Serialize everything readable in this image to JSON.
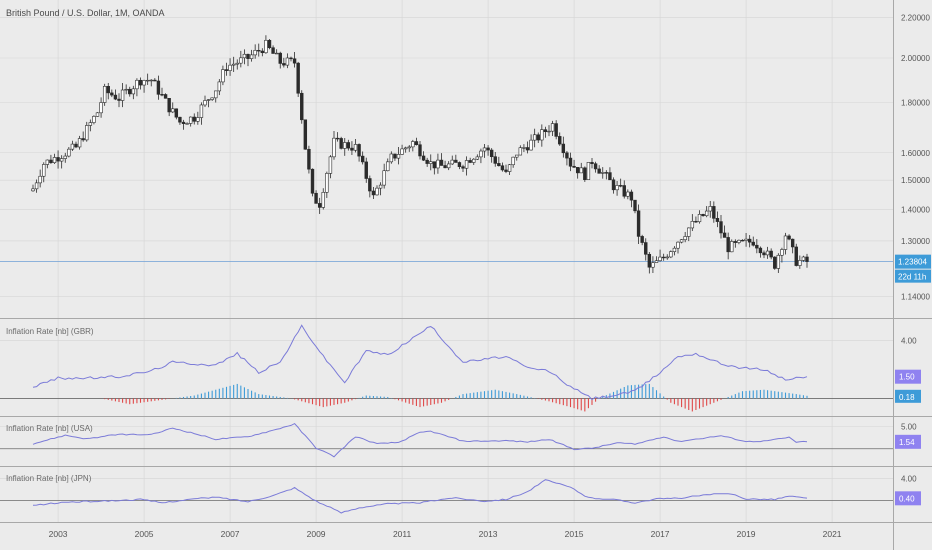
{
  "symbol_title": "British Pound / U.S. Dollar, 1M, OANDA",
  "price_badge": "1.23804",
  "countdown_badge": "22d 11h",
  "colors": {
    "background": "#ebebeb",
    "grid": "#d5d5d5",
    "candle": "#2b2b2b",
    "price_line": "#6e9fd6",
    "indicator_line": "#7b7bd8",
    "hist_positive": "#3d9bd8",
    "hist_negative": "#e04848",
    "badge_blue": "#3d9bd8",
    "badge_purple": "#8f82f0"
  },
  "chart_data": [
    {
      "type": "candlestick",
      "title": "British Pound / U.S. Dollar, 1M, OANDA",
      "y_scale": "log",
      "ylim": [
        1.11,
        2.25
      ],
      "y_ticks": [
        {
          "value": 2.2,
          "label": "2.20000"
        },
        {
          "value": 2.0,
          "label": "2.00000"
        },
        {
          "value": 1.8,
          "label": "1.80000"
        },
        {
          "value": 1.6,
          "label": "1.60000"
        },
        {
          "value": 1.5,
          "label": "1.50000"
        },
        {
          "value": 1.4,
          "label": "1.40000"
        },
        {
          "value": 1.3,
          "label": "1.30000"
        },
        {
          "value": 1.14,
          "label": "1.14000"
        }
      ],
      "last_price": 1.23804,
      "x_ticks": [
        "2003",
        "2005",
        "2007",
        "2009",
        "2011",
        "2013",
        "2015",
        "2017",
        "2019",
        "2021"
      ],
      "close_path": [
        [
          "2002-06",
          1.47
        ],
        [
          "2002-09",
          1.56
        ],
        [
          "2002-12",
          1.58
        ],
        [
          "2003-06",
          1.62
        ],
        [
          "2003-12",
          1.76
        ],
        [
          "2004-02",
          1.85
        ],
        [
          "2004-06",
          1.82
        ],
        [
          "2004-12",
          1.9
        ],
        [
          "2005-03",
          1.9
        ],
        [
          "2005-08",
          1.78
        ],
        [
          "2005-11",
          1.72
        ],
        [
          "2006-03",
          1.74
        ],
        [
          "2006-09",
          1.86
        ],
        [
          "2006-12",
          1.96
        ],
        [
          "2007-06",
          2.0
        ],
        [
          "2007-11",
          2.06
        ],
        [
          "2008-03",
          1.98
        ],
        [
          "2008-07",
          1.98
        ],
        [
          "2008-10",
          1.62
        ],
        [
          "2008-12",
          1.44
        ],
        [
          "2009-02",
          1.42
        ],
        [
          "2009-06",
          1.64
        ],
        [
          "2009-12",
          1.62
        ],
        [
          "2010-05",
          1.44
        ],
        [
          "2010-10",
          1.58
        ],
        [
          "2011-04",
          1.64
        ],
        [
          "2011-09",
          1.56
        ],
        [
          "2011-12",
          1.55
        ],
        [
          "2012-06",
          1.56
        ],
        [
          "2012-12",
          1.62
        ],
        [
          "2013-06",
          1.52
        ],
        [
          "2013-09",
          1.6
        ],
        [
          "2014-03",
          1.66
        ],
        [
          "2014-07",
          1.71
        ],
        [
          "2014-12",
          1.56
        ],
        [
          "2015-04",
          1.52
        ],
        [
          "2015-06",
          1.57
        ],
        [
          "2015-12",
          1.48
        ],
        [
          "2016-05",
          1.44
        ],
        [
          "2016-07",
          1.32
        ],
        [
          "2016-10",
          1.22
        ],
        [
          "2017-02",
          1.25
        ],
        [
          "2017-09",
          1.34
        ],
        [
          "2018-03",
          1.4
        ],
        [
          "2018-08",
          1.28
        ],
        [
          "2019-03",
          1.3
        ],
        [
          "2019-06",
          1.27
        ],
        [
          "2019-09",
          1.23
        ],
        [
          "2019-12",
          1.32
        ],
        [
          "2020-03",
          1.24
        ],
        [
          "2020-06",
          1.238
        ]
      ]
    },
    {
      "type": "line+histogram",
      "title": "Inflation Rate [nb] (GBR)",
      "ylim": [
        -0.8,
        5.0
      ],
      "y_ticks": [
        {
          "value": 4.0,
          "label": "4.00"
        }
      ],
      "last_value": 1.5,
      "last_value_label": "1.50",
      "hist_last_label": "0.18",
      "line": [
        [
          "2002-06",
          0.8
        ],
        [
          "2003-01",
          1.4
        ],
        [
          "2003-09",
          1.4
        ],
        [
          "2004-06",
          1.5
        ],
        [
          "2005-03",
          1.9
        ],
        [
          "2005-09",
          2.5
        ],
        [
          "2006-09",
          2.3
        ],
        [
          "2007-03",
          3.1
        ],
        [
          "2007-09",
          1.8
        ],
        [
          "2008-03",
          2.5
        ],
        [
          "2008-09",
          5.0
        ],
        [
          "2009-03",
          2.9
        ],
        [
          "2009-09",
          1.1
        ],
        [
          "2010-03",
          3.3
        ],
        [
          "2010-09",
          3.0
        ],
        [
          "2011-03",
          4.0
        ],
        [
          "2011-09",
          5.0
        ],
        [
          "2012-06",
          2.5
        ],
        [
          "2012-12",
          2.7
        ],
        [
          "2013-06",
          2.9
        ],
        [
          "2013-12",
          2.1
        ],
        [
          "2014-06",
          1.9
        ],
        [
          "2014-12",
          0.8
        ],
        [
          "2015-06",
          0.0
        ],
        [
          "2015-12",
          0.2
        ],
        [
          "2016-06",
          0.5
        ],
        [
          "2016-12",
          1.6
        ],
        [
          "2017-06",
          2.9
        ],
        [
          "2017-11",
          3.1
        ],
        [
          "2018-06",
          2.4
        ],
        [
          "2018-12",
          2.1
        ],
        [
          "2019-06",
          2.0
        ],
        [
          "2019-12",
          1.3
        ],
        [
          "2020-06",
          1.5
        ]
      ],
      "histogram": [
        [
          "2004-01",
          0.0
        ],
        [
          "2004-09",
          -0.4
        ],
        [
          "2005-09",
          0.0
        ],
        [
          "2006-03",
          0.2
        ],
        [
          "2007-03",
          1.0
        ],
        [
          "2007-09",
          0.3
        ],
        [
          "2008-06",
          0.0
        ],
        [
          "2009-03",
          -0.6
        ],
        [
          "2009-09",
          -0.3
        ],
        [
          "2010-03",
          0.2
        ],
        [
          "2010-09",
          0.1
        ],
        [
          "2011-06",
          -0.6
        ],
        [
          "2011-12",
          -0.3
        ],
        [
          "2012-06",
          0.3
        ],
        [
          "2013-03",
          0.6
        ],
        [
          "2013-09",
          0.3
        ],
        [
          "2014-06",
          -0.2
        ],
        [
          "2014-12",
          -0.6
        ],
        [
          "2015-04",
          -0.9
        ],
        [
          "2015-08",
          0.0
        ],
        [
          "2016-04",
          0.9
        ],
        [
          "2016-10",
          1.0
        ],
        [
          "2017-04",
          -0.3
        ],
        [
          "2017-10",
          -0.9
        ],
        [
          "2018-06",
          -0.1
        ],
        [
          "2018-12",
          0.5
        ],
        [
          "2019-06",
          0.6
        ],
        [
          "2020-03",
          0.3
        ],
        [
          "2020-06",
          0.18
        ]
      ]
    },
    {
      "type": "line",
      "title": "Inflation Rate [nb] (USA)",
      "ylim": [
        -2.5,
        5.5
      ],
      "y_ticks": [
        {
          "value": 5.0,
          "label": "5.00"
        }
      ],
      "last_value": 1.54,
      "last_value_label": "1.54",
      "line": [
        [
          "2002-06",
          1.1
        ],
        [
          "2003-03",
          3.0
        ],
        [
          "2003-09",
          2.2
        ],
        [
          "2004-06",
          3.2
        ],
        [
          "2005-03",
          3.1
        ],
        [
          "2005-09",
          4.6
        ],
        [
          "2006-03",
          3.4
        ],
        [
          "2006-09",
          2.1
        ],
        [
          "2007-06",
          2.7
        ],
        [
          "2008-01",
          4.1
        ],
        [
          "2008-07",
          5.5
        ],
        [
          "2009-01",
          0.2
        ],
        [
          "2009-06",
          -1.7
        ],
        [
          "2009-12",
          2.7
        ],
        [
          "2010-06",
          1.1
        ],
        [
          "2010-12",
          1.4
        ],
        [
          "2011-06",
          3.6
        ],
        [
          "2011-09",
          3.9
        ],
        [
          "2012-06",
          1.7
        ],
        [
          "2012-12",
          1.7
        ],
        [
          "2013-06",
          1.8
        ],
        [
          "2013-12",
          1.5
        ],
        [
          "2014-06",
          2.1
        ],
        [
          "2015-01",
          -0.1
        ],
        [
          "2015-06",
          0.1
        ],
        [
          "2016-01",
          1.3
        ],
        [
          "2016-06",
          1.0
        ],
        [
          "2017-02",
          2.7
        ],
        [
          "2017-06",
          1.6
        ],
        [
          "2018-06",
          2.9
        ],
        [
          "2019-01",
          1.6
        ],
        [
          "2019-06",
          1.7
        ],
        [
          "2020-01",
          2.5
        ],
        [
          "2020-03",
          1.5
        ],
        [
          "2020-06",
          1.54
        ]
      ]
    },
    {
      "type": "line",
      "title": "Inflation Rate [nb] (JPN)",
      "ylim": [
        -2.8,
        4.8
      ],
      "y_ticks": [
        {
          "value": 4.0,
          "label": "4.00"
        }
      ],
      "last_value": 0.4,
      "last_value_label": "0.40",
      "line": [
        [
          "2002-06",
          -0.9
        ],
        [
          "2003-03",
          -0.3
        ],
        [
          "2004-06",
          0.0
        ],
        [
          "2004-12",
          0.2
        ],
        [
          "2005-06",
          -0.4
        ],
        [
          "2006-03",
          0.3
        ],
        [
          "2006-09",
          0.6
        ],
        [
          "2007-06",
          -0.2
        ],
        [
          "2008-01",
          0.9
        ],
        [
          "2008-07",
          2.3
        ],
        [
          "2009-01",
          -0.1
        ],
        [
          "2009-08",
          -2.2
        ],
        [
          "2010-01",
          -1.3
        ],
        [
          "2010-09",
          -0.6
        ],
        [
          "2011-06",
          -0.4
        ],
        [
          "2012-03",
          0.5
        ],
        [
          "2012-12",
          -0.1
        ],
        [
          "2013-06",
          0.2
        ],
        [
          "2013-12",
          1.6
        ],
        [
          "2014-05",
          3.7
        ],
        [
          "2014-12",
          2.4
        ],
        [
          "2015-05",
          0.5
        ],
        [
          "2015-12",
          0.2
        ],
        [
          "2016-06",
          -0.4
        ],
        [
          "2016-12",
          0.3
        ],
        [
          "2017-06",
          0.4
        ],
        [
          "2018-03",
          1.1
        ],
        [
          "2018-09",
          1.2
        ],
        [
          "2019-01",
          0.3
        ],
        [
          "2019-09",
          0.2
        ],
        [
          "2020-01",
          0.8
        ],
        [
          "2020-06",
          0.4
        ]
      ]
    }
  ]
}
